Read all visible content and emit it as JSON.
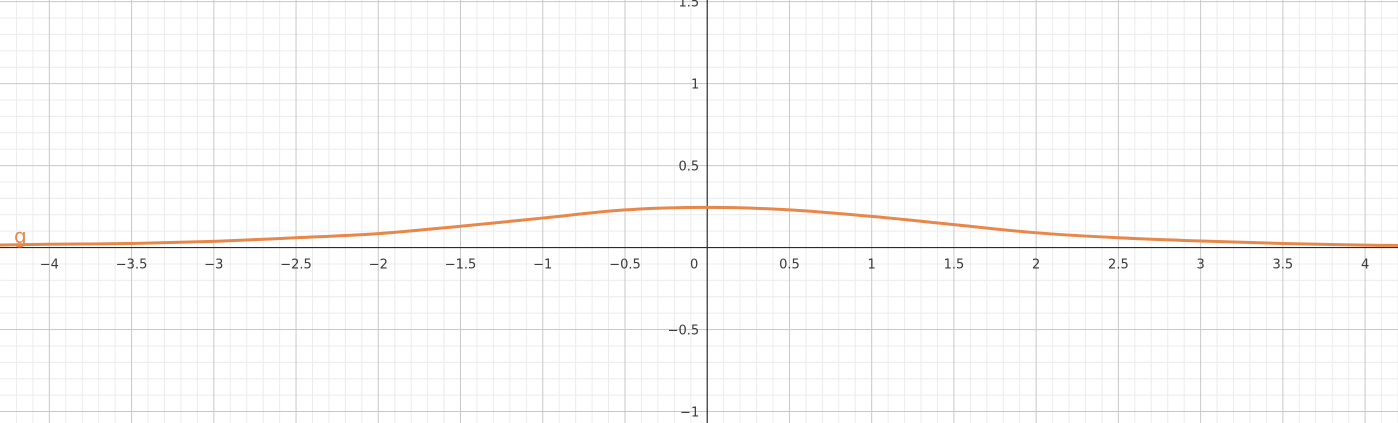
{
  "chart_data": {
    "type": "line",
    "title": "",
    "xlabel": "",
    "ylabel": "",
    "xlim": [
      -4.3,
      4.2
    ],
    "ylim": [
      -1.07,
      1.51
    ],
    "grid": true,
    "x_ticks": [
      {
        "value": -4,
        "label": "−4"
      },
      {
        "value": -3.5,
        "label": "−3.5"
      },
      {
        "value": -3,
        "label": "−3"
      },
      {
        "value": -2.5,
        "label": "−2.5"
      },
      {
        "value": -2,
        "label": "−2"
      },
      {
        "value": -1.5,
        "label": "−1.5"
      },
      {
        "value": -1,
        "label": "−1"
      },
      {
        "value": -0.5,
        "label": "−0.5"
      },
      {
        "value": 0,
        "label": "0"
      },
      {
        "value": 0.5,
        "label": "0.5"
      },
      {
        "value": 1,
        "label": "1"
      },
      {
        "value": 1.5,
        "label": "1.5"
      },
      {
        "value": 2,
        "label": "2"
      },
      {
        "value": 2.5,
        "label": "2.5"
      },
      {
        "value": 3,
        "label": "3"
      },
      {
        "value": 3.5,
        "label": "3.5"
      },
      {
        "value": 4,
        "label": "4"
      }
    ],
    "y_ticks": [
      {
        "value": 1.5,
        "label": "1.5"
      },
      {
        "value": 1,
        "label": "1"
      },
      {
        "value": 0.5,
        "label": "0.5"
      },
      {
        "value": -0.5,
        "label": "−0.5"
      },
      {
        "value": -1,
        "label": "−1"
      }
    ],
    "series": [
      {
        "name": "g",
        "color": "#e8874a",
        "x": [
          -4.3,
          -4,
          -3.5,
          -3,
          -2.5,
          -2,
          -1.5,
          -1,
          -0.5,
          0,
          0.5,
          1,
          1.5,
          2,
          2.5,
          3,
          3.5,
          4,
          4.2
        ],
        "y": [
          0.016,
          0.02,
          0.025,
          0.038,
          0.06,
          0.085,
          0.13,
          0.18,
          0.23,
          0.245,
          0.23,
          0.19,
          0.14,
          0.09,
          0.06,
          0.04,
          0.025,
          0.015,
          0.013
        ]
      }
    ]
  }
}
